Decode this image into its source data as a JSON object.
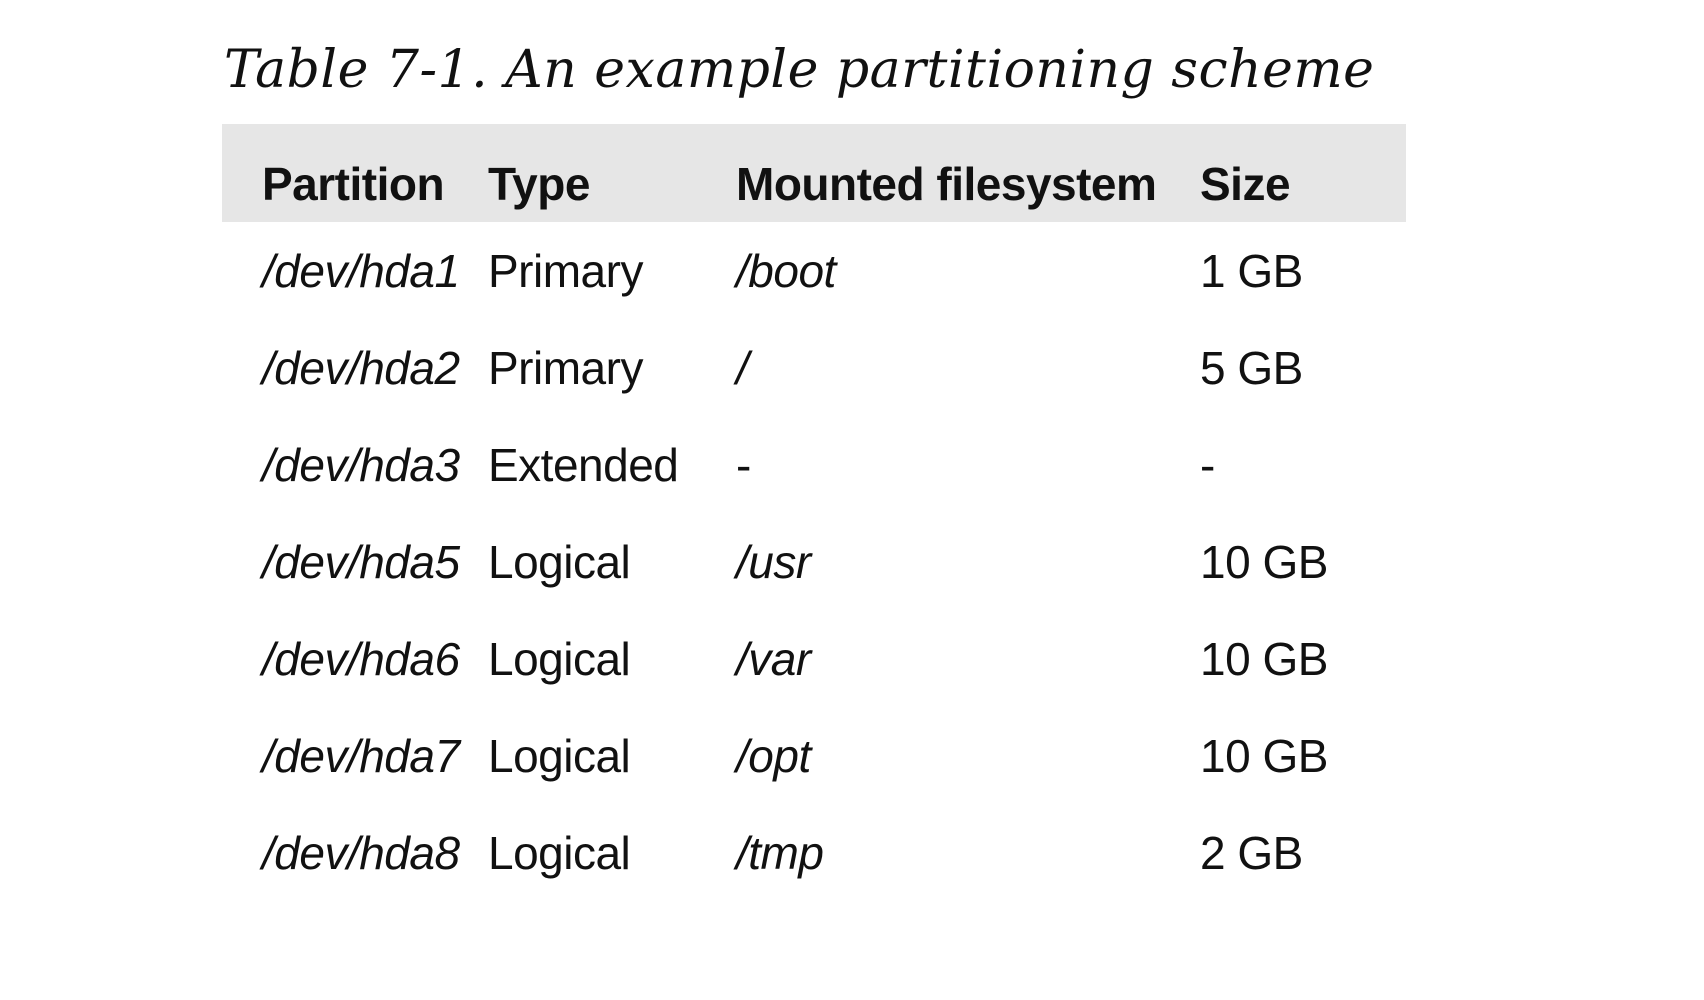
{
  "caption": "Table 7-1. An example partitioning scheme",
  "table": {
    "headers": [
      "Partition",
      "Type",
      "Mounted filesystem",
      "Size"
    ],
    "rows": [
      {
        "partition": "/dev/hda1",
        "type": "Primary",
        "mount": "/boot",
        "size": "1 GB"
      },
      {
        "partition": "/dev/hda2",
        "type": "Primary",
        "mount": "/",
        "size": "5 GB"
      },
      {
        "partition": "/dev/hda3",
        "type": "Extended",
        "mount": "-",
        "size": "-"
      },
      {
        "partition": "/dev/hda5",
        "type": "Logical",
        "mount": "/usr",
        "size": "10 GB"
      },
      {
        "partition": "/dev/hda6",
        "type": "Logical",
        "mount": "/var",
        "size": "10 GB"
      },
      {
        "partition": "/dev/hda7",
        "type": "Logical",
        "mount": "/opt",
        "size": "10 GB"
      },
      {
        "partition": "/dev/hda8",
        "type": "Logical",
        "mount": "/tmp",
        "size": "2 GB"
      }
    ]
  },
  "colors": {
    "header_background": "#e6e6e6",
    "text": "#111111",
    "page_background": "#ffffff"
  }
}
